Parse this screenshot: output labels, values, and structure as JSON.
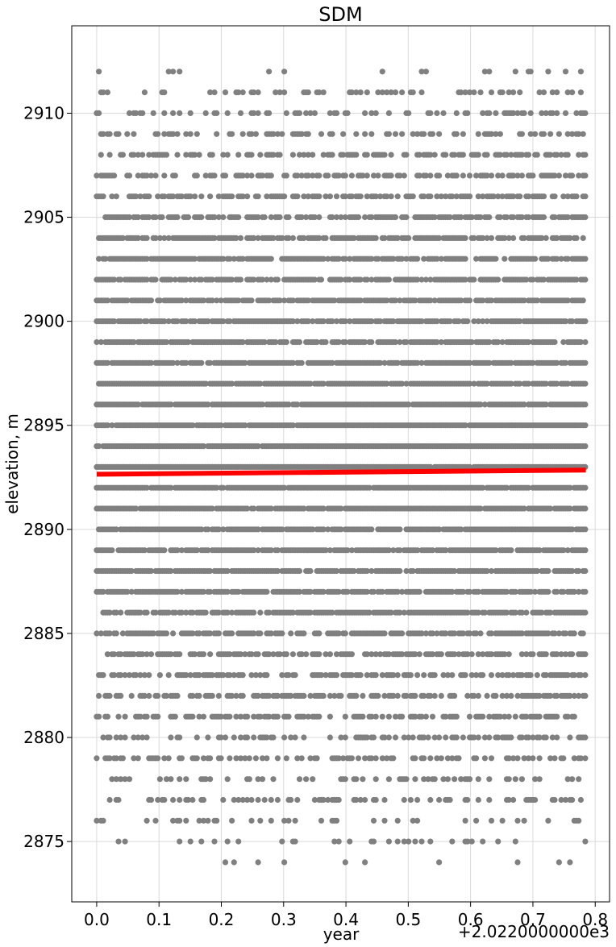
{
  "chart_data": {
    "type": "scatter",
    "title": "SDM",
    "xlabel": "year",
    "ylabel": "elevation, m",
    "x_offset_label": "+2.0220000000e3",
    "xlim": [
      -0.04,
      0.823
    ],
    "ylim": [
      2872.1,
      2914.2
    ],
    "grid": true,
    "xticks": [
      0.0,
      0.1,
      0.2,
      0.3,
      0.4,
      0.5,
      0.6,
      0.7,
      0.8
    ],
    "xtick_labels": [
      "0.0",
      "0.1",
      "0.2",
      "0.3",
      "0.4",
      "0.5",
      "0.6",
      "0.7",
      "0.8"
    ],
    "yticks": [
      2875,
      2880,
      2885,
      2890,
      2895,
      2900,
      2905,
      2910
    ],
    "ytick_labels": [
      "2875",
      "2880",
      "2885",
      "2890",
      "2895",
      "2900",
      "2905",
      "2910"
    ],
    "point_color": "#808080",
    "series": [
      {
        "type": "scatter",
        "color": "#808080",
        "x_range": [
          0.0,
          0.785
        ],
        "y_levels": [
          2874,
          2875,
          2876,
          2877,
          2878,
          2879,
          2880,
          2881,
          2882,
          2883,
          2884,
          2885,
          2886,
          2887,
          2888,
          2889,
          2890,
          2891,
          2892,
          2893,
          2894,
          2895,
          2896,
          2897,
          2898,
          2899,
          2900,
          2901,
          2902,
          2903,
          2904,
          2905,
          2906,
          2907,
          2908,
          2909,
          2910,
          2911,
          2912
        ],
        "level_density": [
          0.05,
          0.12,
          0.2,
          0.27,
          0.3,
          0.34,
          0.38,
          0.5,
          0.55,
          0.6,
          0.7,
          0.75,
          0.82,
          0.86,
          0.88,
          0.9,
          0.92,
          0.95,
          0.96,
          0.97,
          0.97,
          0.97,
          0.95,
          0.93,
          0.92,
          0.88,
          0.87,
          0.86,
          0.8,
          0.75,
          0.72,
          0.62,
          0.58,
          0.55,
          0.48,
          0.4,
          0.3,
          0.22,
          0.1
        ]
      },
      {
        "type": "line",
        "color": "#ff0000",
        "x": [
          0.0,
          0.785
        ],
        "y": [
          2892.65,
          2892.85
        ]
      }
    ]
  }
}
